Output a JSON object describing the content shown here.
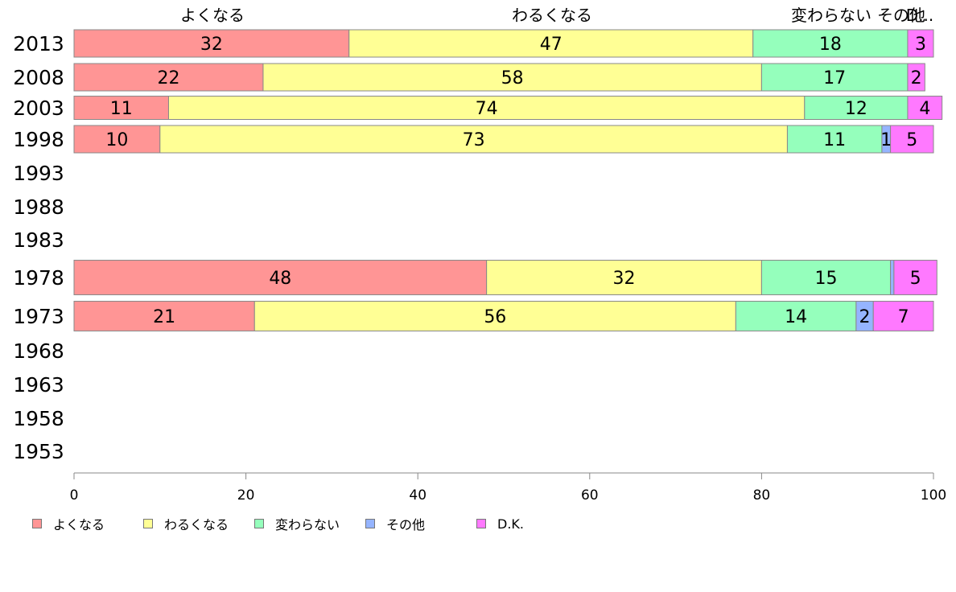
{
  "chart_data": {
    "type": "bar",
    "orientation": "horizontal",
    "stacked": true,
    "years": [
      "2013",
      "2008",
      "2003",
      "1998",
      "1993",
      "1988",
      "1983",
      "1978",
      "1973",
      "1968",
      "1963",
      "1958",
      "1953"
    ],
    "series": [
      {
        "name": "よくなる",
        "color": "#ff9595",
        "values": [
          32,
          22,
          11,
          10,
          null,
          null,
          null,
          48,
          21,
          null,
          null,
          null,
          null
        ],
        "labels": [
          "32",
          "22",
          "11",
          "10",
          "",
          "",
          "",
          "48",
          "21",
          "",
          "",
          "",
          ""
        ]
      },
      {
        "name": "わるくなる",
        "color": "#ffff95",
        "values": [
          47,
          58,
          74,
          73,
          null,
          null,
          null,
          32,
          56,
          null,
          null,
          null,
          null
        ],
        "labels": [
          "47",
          "58",
          "74",
          "73",
          "",
          "",
          "",
          "32",
          "56",
          "",
          "",
          "",
          ""
        ]
      },
      {
        "name": "変わらない",
        "color": "#95ffbc",
        "values": [
          18,
          17,
          12,
          11,
          null,
          null,
          null,
          15,
          14,
          null,
          null,
          null,
          null
        ],
        "labels": [
          "18",
          "17",
          "12",
          "11",
          "",
          "",
          "",
          "15",
          "14",
          "",
          "",
          "",
          ""
        ]
      },
      {
        "name": "その他",
        "color": "#95b4ff",
        "values": [
          0,
          0,
          0,
          1,
          null,
          null,
          null,
          0.4,
          2,
          null,
          null,
          null,
          null
        ],
        "labels": [
          "",
          "",
          "",
          "1",
          "",
          "",
          "",
          "",
          "2",
          "",
          "",
          "",
          ""
        ]
      },
      {
        "name": "D.K.",
        "color": "#ff79ff",
        "values": [
          3,
          2,
          4,
          5,
          null,
          null,
          null,
          5,
          7,
          null,
          null,
          null,
          null
        ],
        "labels": [
          "3",
          "2",
          "4",
          "5",
          "",
          "",
          "",
          "5",
          "7",
          "",
          "",
          "",
          ""
        ]
      }
    ],
    "top_labels": [
      "よくなる",
      "わるくなる",
      "変わらない",
      "その他",
      "D..."
    ],
    "x_ticks": [
      "0",
      "20",
      "40",
      "60",
      "80",
      "100"
    ],
    "xlim": [
      0,
      100
    ],
    "grid": false,
    "legend_position": "bottom"
  }
}
